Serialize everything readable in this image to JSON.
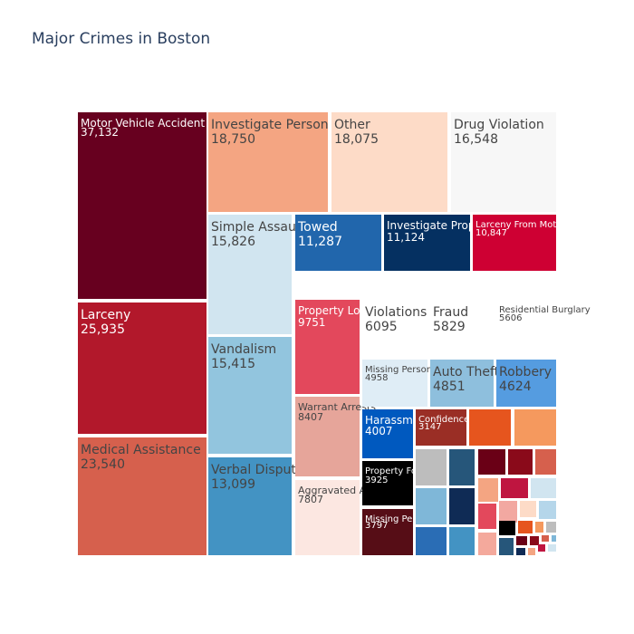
{
  "chart_data": {
    "type": "treemap",
    "title": "Major Crimes in Boston",
    "colorscale": "RdBu (diverging)",
    "items": [
      {
        "label": "Motor Vehicle Accident Response",
        "value": 37132,
        "display": "37,132",
        "color": "#67001f",
        "text_color": "#ffffff"
      },
      {
        "label": "Larceny",
        "value": 25935,
        "display": "25,935",
        "color": "#b2182b",
        "text_color": "#ffffff"
      },
      {
        "label": "Medical Assistance",
        "value": 23540,
        "display": "23,540",
        "color": "#d6604d",
        "text_color": "#444444"
      },
      {
        "label": "Investigate Person",
        "value": 18750,
        "display": "18,750",
        "color": "#f4a582",
        "text_color": "#444444"
      },
      {
        "label": "Other",
        "value": 18075,
        "display": "18,075",
        "color": "#fddbc7",
        "text_color": "#444444"
      },
      {
        "label": "Drug Violation",
        "value": 16548,
        "display": "16,548",
        "color": "#f7f7f7",
        "text_color": "#444444"
      },
      {
        "label": "Simple Assault",
        "value": 15826,
        "display": "15,826",
        "color": "#d1e5f0",
        "text_color": "#444444"
      },
      {
        "label": "Vandalism",
        "value": 15415,
        "display": "15,415",
        "color": "#92c5de",
        "text_color": "#444444"
      },
      {
        "label": "Verbal Disputes",
        "value": 13099,
        "display": "13,099",
        "color": "#4393c3",
        "text_color": "#444444"
      },
      {
        "label": "Towed",
        "value": 11287,
        "display": "11,287",
        "color": "#2166ac",
        "text_color": "#ffffff"
      },
      {
        "label": "Investigate Property",
        "value": 11124,
        "display": "11,124",
        "color": "#053061",
        "text_color": "#ffffff"
      },
      {
        "label": "Larceny From Motor Vehicle",
        "value": 10847,
        "display": "10,847",
        "color": "#ce0033",
        "text_color": "#ffffff"
      },
      {
        "label": "Property Lost",
        "value": 9751,
        "display": "9751",
        "color": "#e3485c",
        "text_color": "#ffffff"
      },
      {
        "label": "Warrant Arrests",
        "value": 8407,
        "display": "8407",
        "color": "#e6a59a",
        "text_color": "#444444"
      },
      {
        "label": "Aggravated Assault",
        "value": 7807,
        "display": "7807",
        "color": "#fce7e1",
        "text_color": "#444444"
      },
      {
        "label": "Violations",
        "value": 6095,
        "display": "6095",
        "color": "#ffffff",
        "text_color": "#444444"
      },
      {
        "label": "Fraud",
        "value": 5829,
        "display": "5829",
        "color": "#ffffff",
        "text_color": "#444444"
      },
      {
        "label": "Residential Burglary",
        "value": 5606,
        "display": "5606",
        "color": "#ffffff",
        "text_color": "#444444"
      },
      {
        "label": "Missing Person Located",
        "value": 4958,
        "display": "4958",
        "color": "#dfedf6",
        "text_color": "#444444"
      },
      {
        "label": "Auto Theft",
        "value": 4851,
        "display": "4851",
        "color": "#8ebfdd",
        "text_color": "#444444"
      },
      {
        "label": "Robbery",
        "value": 4624,
        "display": "4624",
        "color": "#559ce0",
        "text_color": "#444444"
      },
      {
        "label": "Harassment",
        "value": 4007,
        "display": "4007",
        "color": "#0059bf",
        "text_color": "#ffffff"
      },
      {
        "label": "Confidence Games",
        "value": 3147,
        "display": "3147",
        "color": "#9a2e25",
        "text_color": "#ffffff"
      },
      {
        "label": "Property Found",
        "value": 3925,
        "display": "3925",
        "color": "#000000",
        "text_color": "#ffffff"
      },
      {
        "label": "Missing Person Reported",
        "value": 3797,
        "display": "3797",
        "color": "#560d16",
        "text_color": "#ffffff"
      }
    ],
    "unlabeled_colors": [
      "#e6551e",
      "#f5995e",
      "#bdbdbd",
      "#26567a",
      "#6a0016",
      "#8a0a1a",
      "#d6604d",
      "#7fb7d8",
      "#0f2b55",
      "#f4a582",
      "#bf1540",
      "#d1e5f0",
      "#2a6db5",
      "#4393c3",
      "#e3485c",
      "#f2a8a1",
      "#fddbc7",
      "#b5d6ea",
      "#f4a99c",
      "#000000"
    ]
  }
}
